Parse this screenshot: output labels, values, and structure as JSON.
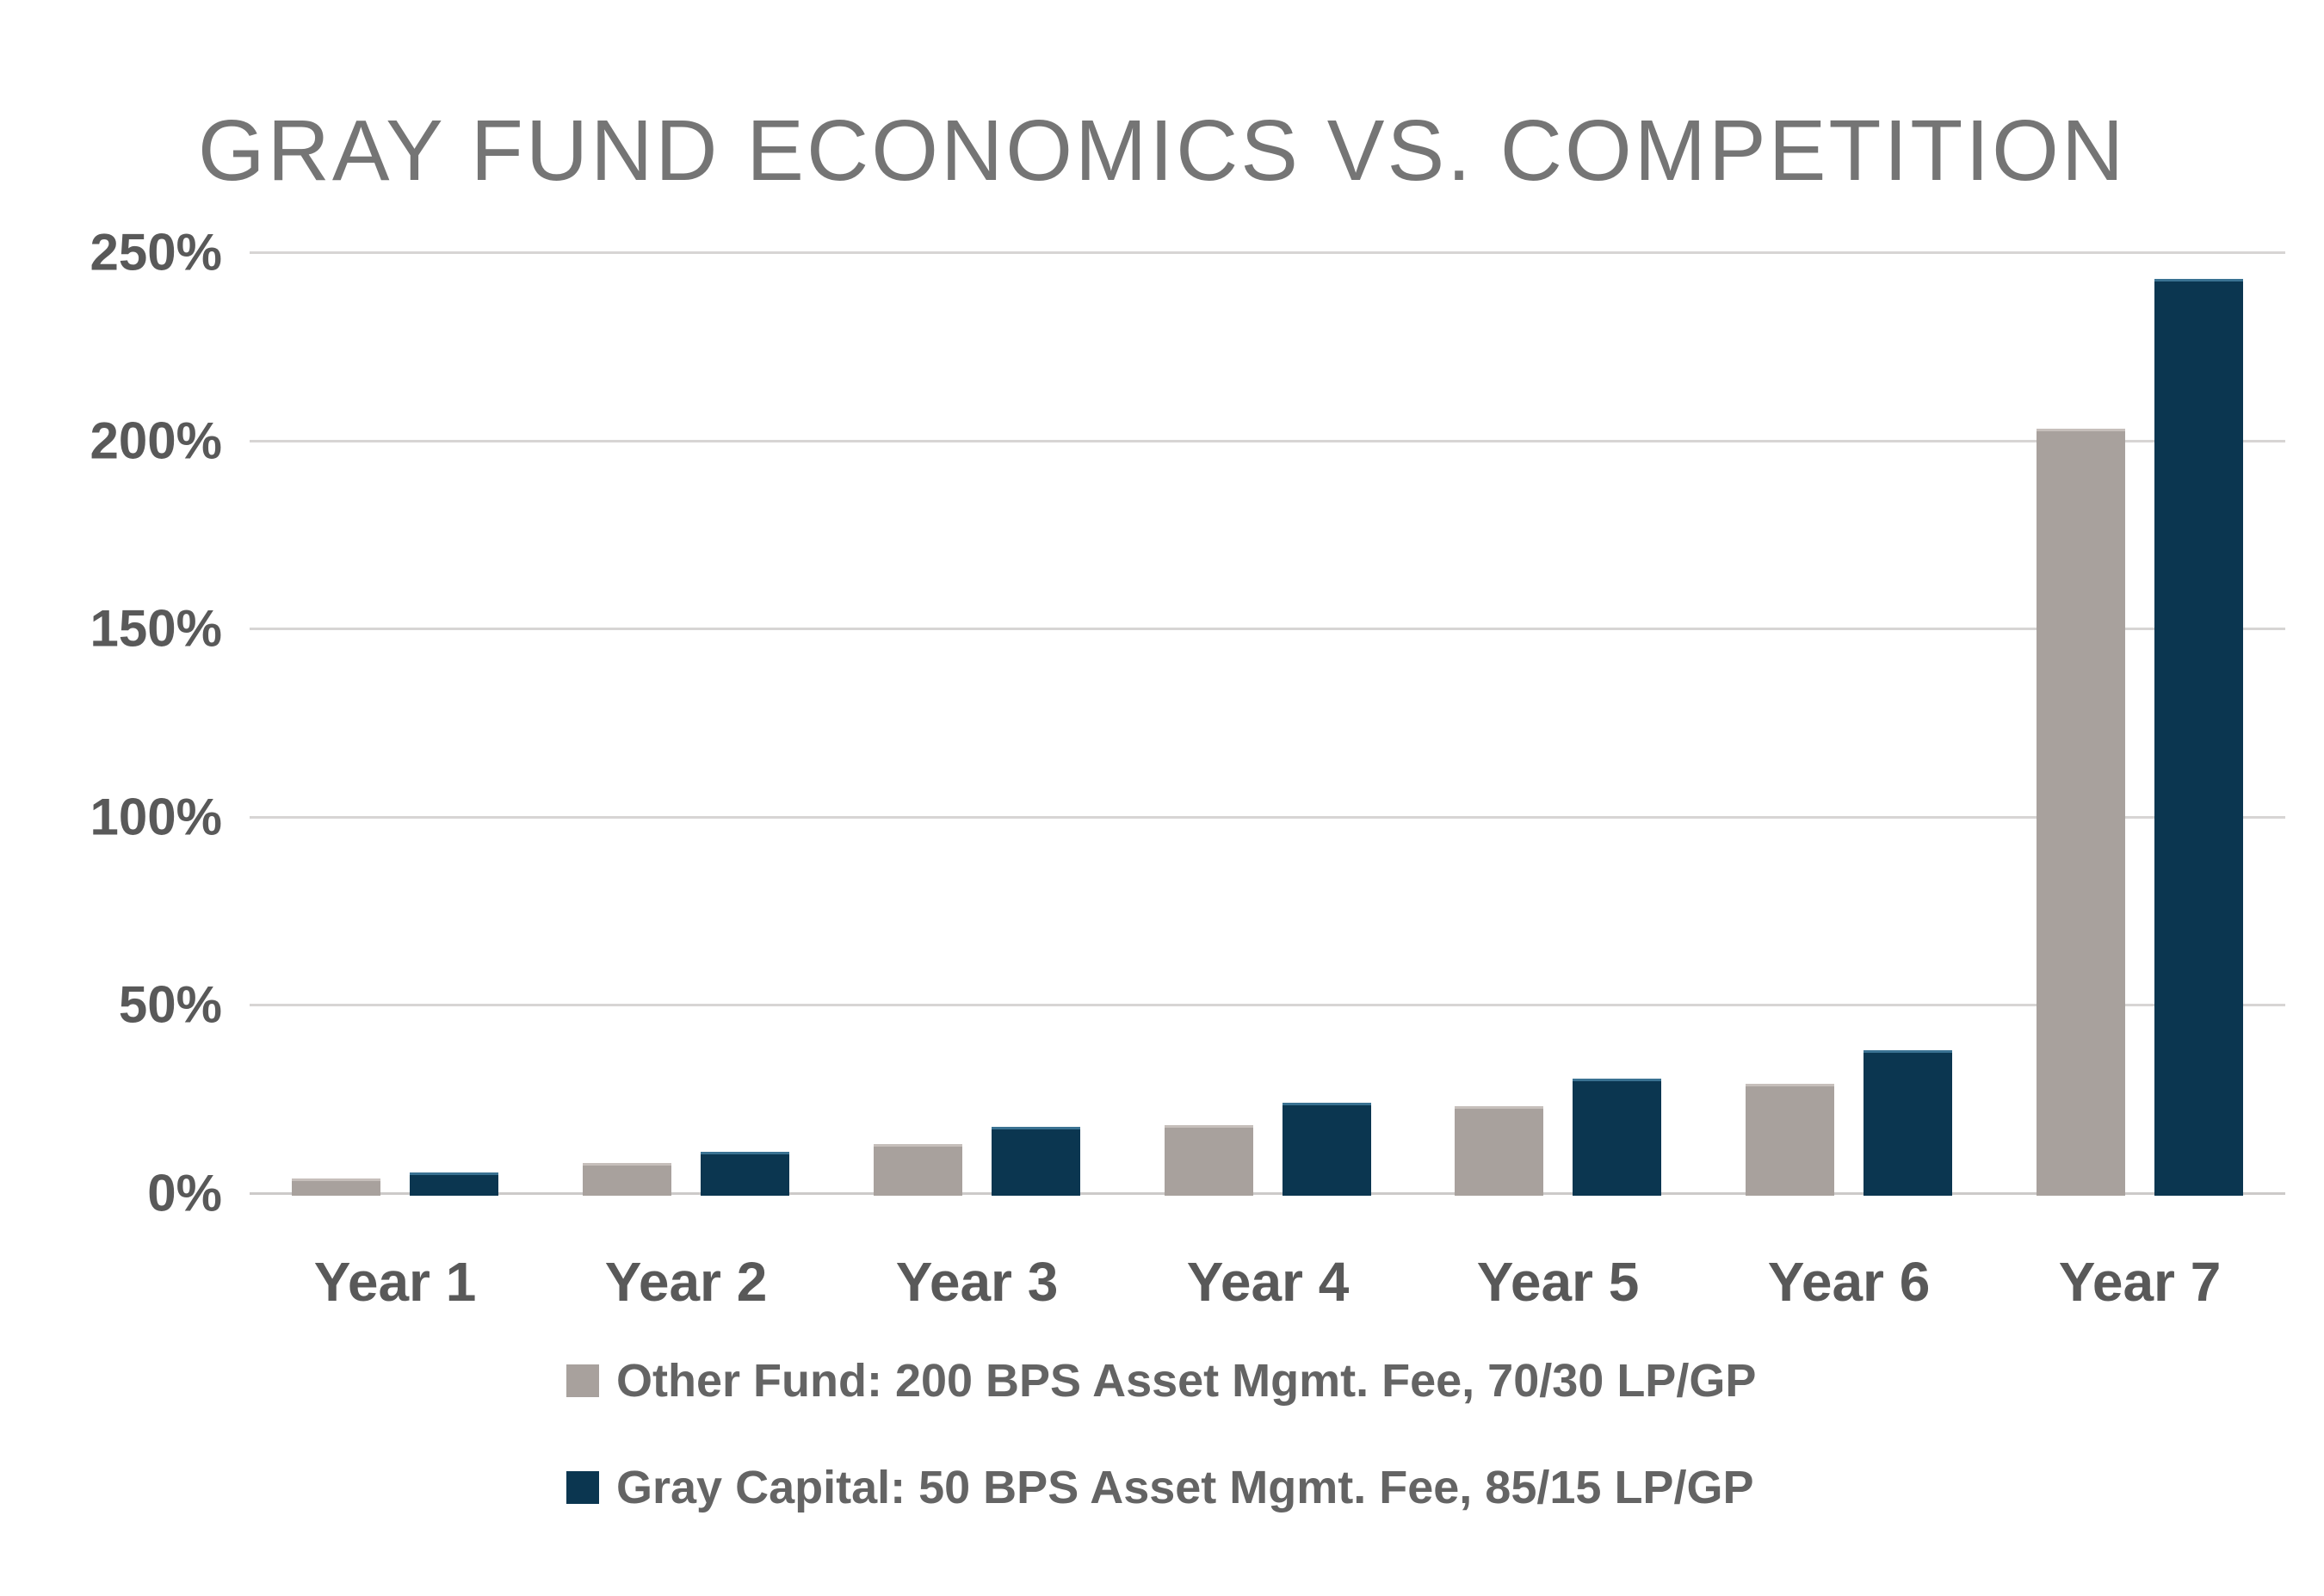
{
  "title": "GRAY FUND ECONOMICS VS. COMPETITION",
  "chart_data": {
    "type": "bar",
    "title": "GRAY FUND ECONOMICS VS. COMPETITION",
    "categories": [
      "Year 1",
      "Year 2",
      "Year 3",
      "Year 4",
      "Year 5",
      "Year 6",
      "Year 7"
    ],
    "series": [
      {
        "name": "Other Fund: 200 BPS Asset Mgmt. Fee, 70/30 LP/GP",
        "slug": "other-fund",
        "color": "#a8a19d",
        "edge_color": "#c6bfbb",
        "values": [
          4,
          8,
          13,
          18,
          23,
          29,
          203
        ]
      },
      {
        "name": "Gray Capital: 50 BPS Asset Mgmt. Fee, 85/15 LP/GP",
        "slug": "gray-capital",
        "color": "#0b3650",
        "edge_color": "#3a7292",
        "values": [
          5.5,
          11,
          17.5,
          24,
          30.5,
          38,
          243
        ]
      }
    ],
    "xlabel": "",
    "ylabel": "",
    "y_ticks": [
      {
        "value": 0,
        "label": "0%"
      },
      {
        "value": 50,
        "label": "50%"
      },
      {
        "value": 100,
        "label": "100%"
      },
      {
        "value": 150,
        "label": "150%"
      },
      {
        "value": 200,
        "label": "200%"
      },
      {
        "value": 250,
        "label": "250%"
      }
    ],
    "ylim": [
      0,
      250
    ],
    "grid": true,
    "legend_position": "bottom"
  },
  "colors": {
    "background": "#ffffff",
    "title_text": "#757575",
    "axis_text": "#595959",
    "legend_text": "#646464",
    "gridline": "#d7d5d4",
    "baseline": "#cccac9"
  }
}
